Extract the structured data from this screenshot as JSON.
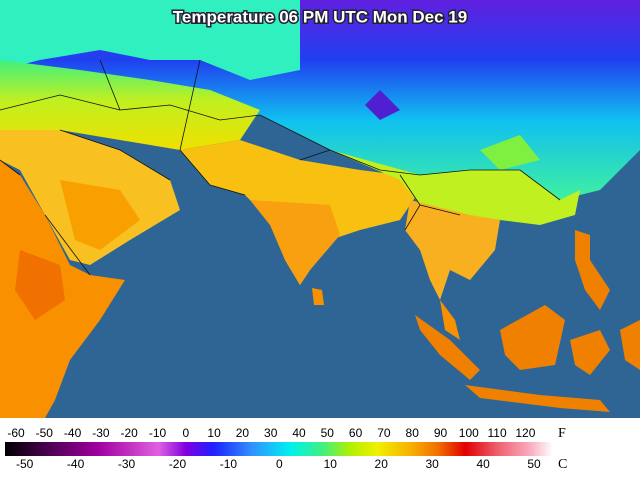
{
  "title": "Temperature 06 PM UTC Mon Dec 19",
  "legend": {
    "fahrenheit": {
      "unit": "F",
      "ticks": [
        -60,
        -50,
        -40,
        -30,
        -20,
        -10,
        0,
        10,
        20,
        30,
        40,
        50,
        60,
        70,
        80,
        90,
        100,
        110,
        120
      ]
    },
    "celsius": {
      "unit": "C",
      "ticks": [
        -50,
        -40,
        -30,
        -20,
        -10,
        0,
        10,
        20,
        30,
        40,
        50
      ]
    }
  }
}
